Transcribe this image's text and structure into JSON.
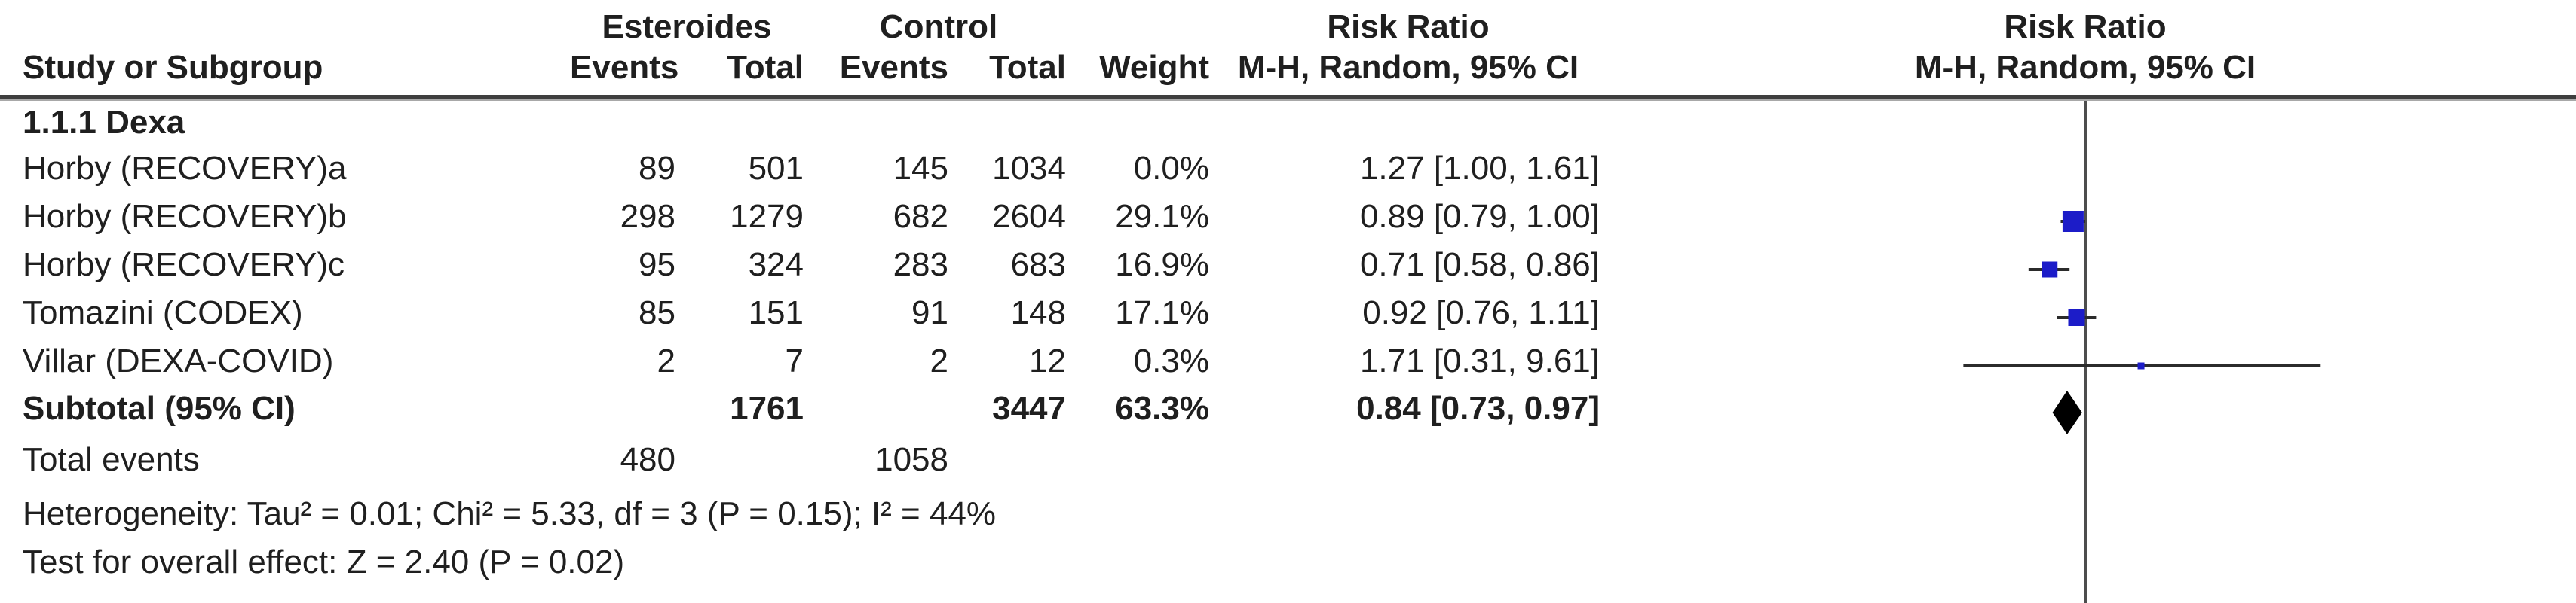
{
  "header": {
    "col_study": "Study or Subgroup",
    "group1": "Esteroides",
    "group2": "Control",
    "col_events": "Events",
    "col_total": "Total",
    "col_weight": "Weight",
    "effect_title": "Risk Ratio",
    "effect_sub": "M-H, Random, 95% CI",
    "plot_title": "Risk Ratio",
    "plot_sub": "M-H, Random, 95% CI"
  },
  "subgroup_label": "1.1.1 Dexa",
  "rows": [
    {
      "name": "Horby (RECOVERY)a",
      "ee": "89",
      "et": "501",
      "ce": "145",
      "ct": "1034",
      "w": "0.0%",
      "ci": "1.27 [1.00, 1.61]"
    },
    {
      "name": "Horby (RECOVERY)b",
      "ee": "298",
      "et": "1279",
      "ce": "682",
      "ct": "2604",
      "w": "29.1%",
      "ci": "0.89 [0.79, 1.00]"
    },
    {
      "name": "Horby (RECOVERY)c",
      "ee": "95",
      "et": "324",
      "ce": "283",
      "ct": "683",
      "w": "16.9%",
      "ci": "0.71 [0.58, 0.86]"
    },
    {
      "name": "Tomazini (CODEX)",
      "ee": "85",
      "et": "151",
      "ce": "91",
      "ct": "148",
      "w": "17.1%",
      "ci": "0.92 [0.76, 1.11]"
    },
    {
      "name": "Villar (DEXA-COVID)",
      "ee": "2",
      "et": "7",
      "ce": "2",
      "ct": "12",
      "w": "0.3%",
      "ci": "1.71 [0.31, 9.61]"
    }
  ],
  "subtotal": {
    "label": "Subtotal (95% CI)",
    "et": "1761",
    "ct": "3447",
    "w": "63.3%",
    "ci": "0.84 [0.73, 0.97]"
  },
  "total_events": {
    "label": "Total events",
    "e": "480",
    "c": "1058"
  },
  "heterogeneity": "Heterogeneity: Tau² = 0.01; Chi² = 5.33, df = 3 (P = 0.15); I² = 44%",
  "overall_effect": "Test for overall effect: Z = 2.40 (P = 0.02)",
  "colors": {
    "marker_blue": "#1C1CC8",
    "ci_line": "#2b2b2b",
    "axis_gray": "#4d4d4d",
    "rule_dark": "#3e3e3e",
    "rule_light": "#a8a8a8",
    "diamond_black": "#000000"
  },
  "chart_data": {
    "type": "scatter",
    "subtype": "forest-plot",
    "x_scale": "log",
    "null_line_value": 1,
    "title": "Risk Ratio",
    "subtitle": "M-H, Random, 95% CI",
    "effect_measure": "Risk Ratio, Mantel-Haenszel, Random effects, 95% CI",
    "subgroup": "1.1.1 Dexa",
    "points": [
      {
        "label": "Horby (RECOVERY)a",
        "rr": 1.27,
        "ci": [
          1.0,
          1.61
        ],
        "weight_pct": 0.0
      },
      {
        "label": "Horby (RECOVERY)b",
        "rr": 0.89,
        "ci": [
          0.79,
          1.0
        ],
        "weight_pct": 29.1
      },
      {
        "label": "Horby (RECOVERY)c",
        "rr": 0.71,
        "ci": [
          0.58,
          0.86
        ],
        "weight_pct": 16.9
      },
      {
        "label": "Tomazini (CODEX)",
        "rr": 0.92,
        "ci": [
          0.76,
          1.11
        ],
        "weight_pct": 17.1
      },
      {
        "label": "Villar (DEXA-COVID)",
        "rr": 1.71,
        "ci": [
          0.31,
          9.61
        ],
        "weight_pct": 0.3
      }
    ],
    "summary": {
      "label": "Subtotal (95% CI)",
      "rr": 0.84,
      "ci": [
        0.73,
        0.97
      ],
      "weight_pct": 63.3
    }
  }
}
